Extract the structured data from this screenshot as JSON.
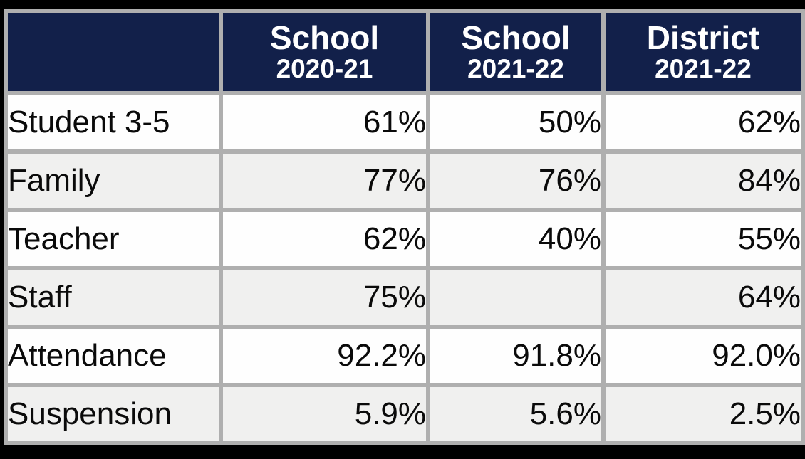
{
  "colors": {
    "header_background": "#12204a",
    "header_text": "#ffffff",
    "grid_border": "#afafaf",
    "row_white": "#fefefe",
    "row_alt_gray": "#f0f0ef",
    "outer_frame": "#000000",
    "body_text": "#0a0a0a"
  },
  "chart_data": {
    "type": "table",
    "columns": [
      {
        "label": "School",
        "year": "2020-21"
      },
      {
        "label": "School",
        "year": "2021-22"
      },
      {
        "label": "District",
        "year": "2021-22"
      }
    ],
    "rows": [
      {
        "label": "Student 3-5",
        "values": [
          "61%",
          "50%",
          "62%"
        ]
      },
      {
        "label": "Family",
        "values": [
          "77%",
          "76%",
          "84%"
        ]
      },
      {
        "label": "Teacher",
        "values": [
          "62%",
          "40%",
          "55%"
        ]
      },
      {
        "label": "Staff",
        "values": [
          "75%",
          "",
          "64%"
        ]
      },
      {
        "label": "Attendance",
        "values": [
          "92.2%",
          "91.8%",
          "92.0%"
        ]
      },
      {
        "label": "Suspension",
        "values": [
          "5.9%",
          "5.6%",
          "2.5%"
        ]
      }
    ]
  }
}
